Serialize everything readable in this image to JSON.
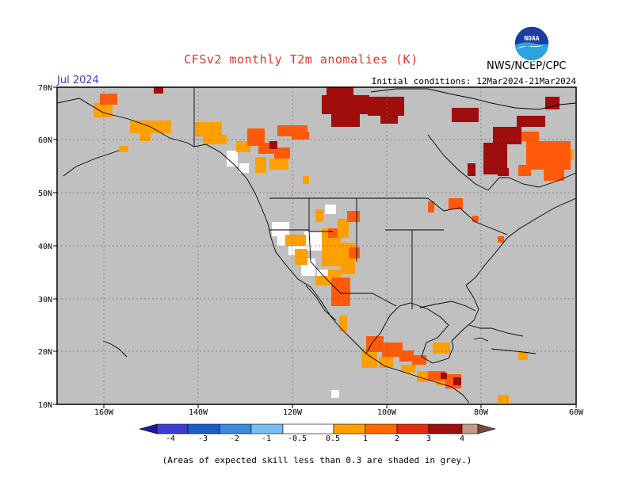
{
  "title": "CFSv2 monthly T2m anomalies (K)",
  "organization": "NWS/NCEP/CPC",
  "logo": {
    "text": "NOAA",
    "colors": {
      "top": "#1a3f9e",
      "bottom": "#2fa3e0",
      "bird": "#ffffff"
    }
  },
  "valid_month": "Jul 2024",
  "initial_conditions": "Initial conditions: 12Mar2024-21Mar2024",
  "map": {
    "lat_labels": [
      "70N",
      "60N",
      "50N",
      "40N",
      "30N",
      "20N",
      "10N"
    ],
    "lon_labels": [
      "160W",
      "140W",
      "120W",
      "100W",
      "80W",
      "60W"
    ],
    "background_color": "#c0c0c0",
    "gridlines": "dashed"
  },
  "legend": {
    "tick_labels": [
      "-4",
      "-3",
      "-2",
      "-1",
      "-0.5",
      "0.5",
      "1",
      "2",
      "3",
      "4"
    ],
    "colors": [
      "#1d1aa6",
      "#3c3cd0",
      "#1a5fc8",
      "#3a8ae0",
      "#79bdf4",
      "#ffffff",
      "#ffa000",
      "#ff6a00",
      "#e62a10",
      "#a00d0d",
      "#c49a8c",
      "#7a4a3a"
    ]
  },
  "footnote": "(Areas of expected skill less than 0.3 are shaded in grey.)"
}
